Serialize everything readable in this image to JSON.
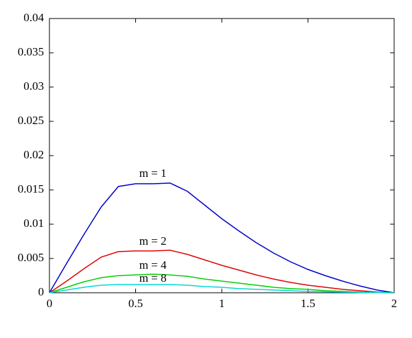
{
  "chart_data": {
    "type": "line",
    "x": [
      0,
      0.1,
      0.2,
      0.3,
      0.4,
      0.5,
      0.6,
      0.7,
      0.8,
      0.9,
      1.0,
      1.1,
      1.2,
      1.3,
      1.4,
      1.5,
      1.6,
      1.7,
      1.8,
      1.9,
      2.0
    ],
    "series": [
      {
        "name": "m = 1",
        "color": "#0000c8",
        "values": [
          0,
          0.0043,
          0.0085,
          0.0125,
          0.0155,
          0.0159,
          0.0159,
          0.016,
          0.0148,
          0.0128,
          0.0108,
          0.009,
          0.0073,
          0.0058,
          0.0045,
          0.0034,
          0.0025,
          0.0017,
          0.001,
          0.0004,
          0
        ]
      },
      {
        "name": "m = 2",
        "color": "#e00000",
        "values": [
          0,
          0.0017,
          0.0035,
          0.0052,
          0.006,
          0.0061,
          0.0061,
          0.0062,
          0.0056,
          0.0048,
          0.004,
          0.0033,
          0.0026,
          0.002,
          0.0015,
          0.0011,
          0.0008,
          0.0005,
          0.0003,
          0.0001,
          0
        ]
      },
      {
        "name": "m = 4",
        "color": "#00d000",
        "values": [
          0,
          0.0008,
          0.0016,
          0.0022,
          0.0025,
          0.0026,
          0.0027,
          0.0026,
          0.0024,
          0.002,
          0.0017,
          0.0014,
          0.0011,
          0.0008,
          0.0006,
          0.0005,
          0.0003,
          0.0002,
          0.0001,
          5e-05,
          0
        ]
      },
      {
        "name": "m = 8",
        "color": "#00d8d8",
        "values": [
          0,
          0.0004,
          0.0008,
          0.0011,
          0.0012,
          0.0012,
          0.0012,
          0.0012,
          0.0011,
          0.0009,
          0.0008,
          0.0006,
          0.0005,
          0.0004,
          0.0003,
          0.0002,
          0.00015,
          0.0001,
          5e-05,
          2e-05,
          0
        ]
      }
    ],
    "xlim": [
      0,
      2
    ],
    "xticks": [
      0,
      0.5,
      1,
      1.5,
      2
    ],
    "ylim": [
      0,
      0.04
    ],
    "yticks": [
      0,
      0.005,
      0.01,
      0.015,
      0.02,
      0.025,
      0.03,
      0.035,
      0.04
    ],
    "grid": false
  }
}
